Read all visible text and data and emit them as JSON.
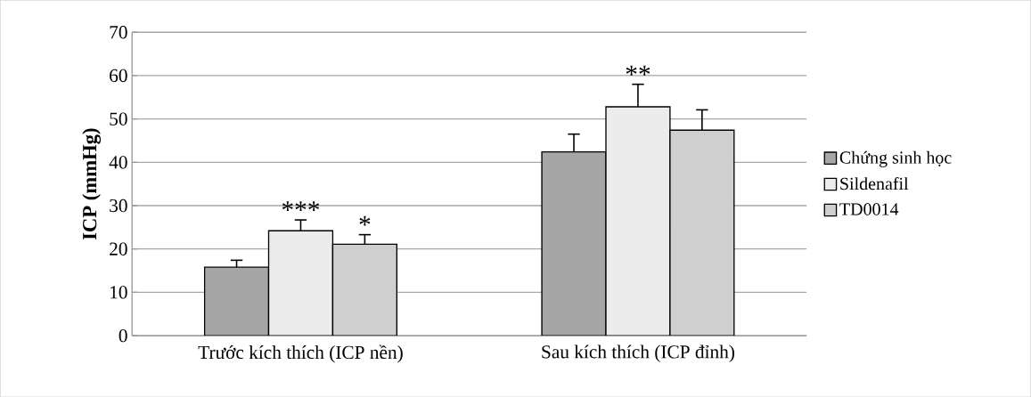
{
  "chart_data": {
    "type": "bar",
    "ylabel": "ICP (mmHg)",
    "categories": [
      "Trước kích thích (ICP nền)",
      "Sau kích thích (ICP đỉnh)"
    ],
    "series": [
      {
        "name": "Chứng sinh học",
        "color": "#a6a6a6",
        "values": [
          15.8,
          42.4
        ],
        "errors": [
          1.6,
          4.1
        ]
      },
      {
        "name": "Sildenafil",
        "color": "#ececec",
        "values": [
          24.2,
          52.8
        ],
        "errors": [
          2.5,
          5.2
        ],
        "value_labels": [
          "***",
          "**"
        ]
      },
      {
        "name": "TD0014",
        "color": "#cfcfcf",
        "values": [
          21.1,
          47.4
        ],
        "errors": [
          2.2,
          4.7
        ],
        "value_labels": [
          "*",
          null
        ]
      }
    ],
    "ylim": [
      0,
      70
    ],
    "yticks": [
      0,
      10,
      20,
      30,
      40,
      50,
      60,
      70
    ],
    "grid": "y",
    "legend": "right"
  }
}
